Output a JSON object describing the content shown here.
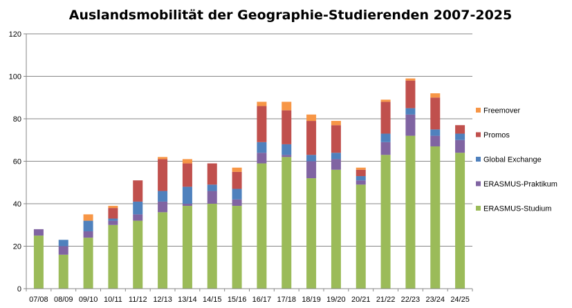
{
  "chart_data": {
    "type": "bar",
    "stacked": true,
    "title": "Auslandsmobilität der Geographie-Studierenden 2007-2025",
    "xlabel": "",
    "ylabel": "",
    "ylim": [
      0,
      120
    ],
    "yticks": [
      0,
      20,
      40,
      60,
      80,
      100,
      120
    ],
    "grid": true,
    "legend_position": "right",
    "categories": [
      "07/08",
      "08/09",
      "09/10",
      "10/11",
      "11/12",
      "12/13",
      "13/14",
      "14/15",
      "15/16",
      "16/17",
      "17/18",
      "18/19",
      "19/20",
      "20/21",
      "21/22",
      "22/23",
      "23/24",
      "24/25"
    ],
    "series": [
      {
        "name": "ERASMUS-Studium",
        "color": "#9BBB59",
        "values": [
          25,
          16,
          24,
          30,
          32,
          36,
          39,
          40,
          39,
          59,
          62,
          52,
          56,
          49,
          63,
          72,
          67,
          64
        ]
      },
      {
        "name": "ERASMUS-Praktikum",
        "color": "#8064A2",
        "values": [
          3,
          4,
          3,
          2,
          3,
          5,
          1,
          6,
          3,
          5,
          1,
          8,
          5,
          2,
          6,
          10,
          5,
          6
        ]
      },
      {
        "name": "Global Exchange",
        "color": "#4F81BD",
        "values": [
          0,
          3,
          5,
          1,
          6,
          5,
          8,
          3,
          5,
          5,
          5,
          3,
          3,
          2,
          4,
          3,
          3,
          3
        ]
      },
      {
        "name": "Promos",
        "color": "#C0504D",
        "values": [
          0,
          0,
          0,
          5,
          10,
          15,
          11,
          10,
          8,
          17,
          16,
          16,
          13,
          3,
          15,
          13,
          15,
          4
        ]
      },
      {
        "name": "Freemover",
        "color": "#F79646",
        "values": [
          0,
          0,
          3,
          1,
          0,
          1,
          2,
          0,
          2,
          2,
          4,
          3,
          2,
          1,
          1,
          1,
          2,
          0
        ]
      }
    ]
  }
}
